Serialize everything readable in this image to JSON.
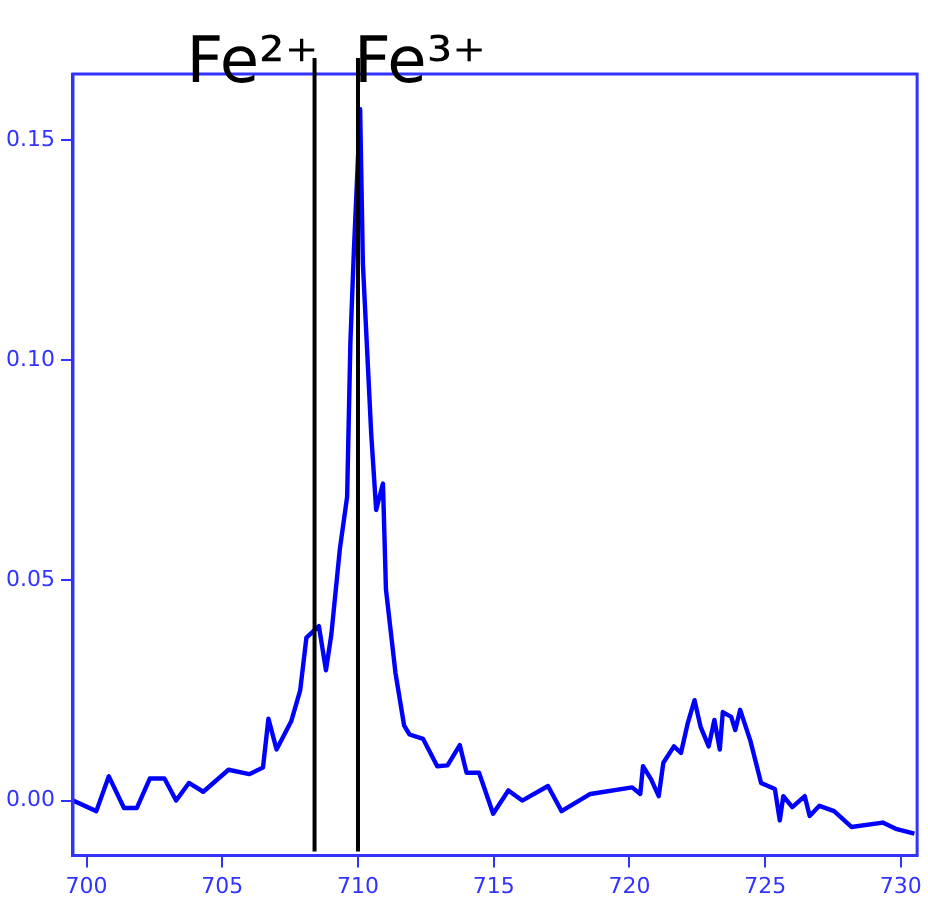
{
  "chart_data": {
    "type": "line",
    "xlim": [
      699.5,
      730.6
    ],
    "ylim": [
      -0.0125,
      0.165
    ],
    "xticks": [
      700,
      705,
      710,
      715,
      720,
      725,
      730
    ],
    "yticks": [
      {
        "value": 0,
        "label": "0.00"
      },
      {
        "value": 0.05,
        "label": "0.05"
      },
      {
        "value": 0.1,
        "label": "0.10"
      },
      {
        "value": 0.15,
        "label": "0.15"
      }
    ],
    "grid": false,
    "legend": false,
    "marker": "none",
    "line_style": "solid",
    "series": [
      {
        "color": "#0000ff",
        "x": [
          699.5,
          700.36,
          700.82,
          701.38,
          701.85,
          702.33,
          702.87,
          703.3,
          703.77,
          704.3,
          705.23,
          706.0,
          706.5,
          706.7,
          707.0,
          707.54,
          707.87,
          708.1,
          708.56,
          708.82,
          709.02,
          709.33,
          709.6,
          709.72,
          709.85,
          710.0,
          710.08,
          710.18,
          710.49,
          710.67,
          710.92,
          711.03,
          711.38,
          711.7,
          711.9,
          712.4,
          712.92,
          713.3,
          713.75,
          714.0,
          714.46,
          714.98,
          715.54,
          716.05,
          717.0,
          717.5,
          718.56,
          720.1,
          720.4,
          720.5,
          720.8,
          721.08,
          721.25,
          721.64,
          721.9,
          722.15,
          722.4,
          722.62,
          722.92,
          723.13,
          723.33,
          723.44,
          723.75,
          723.9,
          724.08,
          724.46,
          724.85,
          725.36,
          725.54,
          725.67,
          726.0,
          726.46,
          726.64,
          727.0,
          727.54,
          728.18,
          729.33,
          729.85,
          730.5
        ],
        "values": [
          0.0,
          -0.0024,
          0.0055,
          -0.0017,
          -0.0017,
          0.005,
          0.005,
          0.0,
          0.004,
          0.002,
          0.007,
          0.006,
          0.0075,
          0.0186,
          0.0116,
          0.018,
          0.025,
          0.037,
          0.0396,
          0.0296,
          0.0378,
          0.057,
          0.069,
          0.104,
          0.125,
          0.146,
          0.157,
          0.122,
          0.083,
          0.066,
          0.072,
          0.048,
          0.029,
          0.017,
          0.015,
          0.014,
          0.0078,
          0.008,
          0.0126,
          0.0063,
          0.0063,
          -0.003,
          0.0023,
          0.0,
          0.0033,
          -0.0024,
          0.0015,
          0.003,
          0.0015,
          0.0078,
          0.0048,
          0.001,
          0.0086,
          0.0123,
          0.0108,
          0.0176,
          0.0228,
          0.0168,
          0.0123,
          0.0183,
          0.0116,
          0.0201,
          0.019,
          0.016,
          0.0206,
          0.0135,
          0.004,
          0.0026,
          -0.0045,
          0.001,
          -0.0015,
          0.001,
          -0.0035,
          -0.0012,
          -0.0024,
          -0.006,
          -0.005,
          -0.0065,
          -0.0075
        ]
      }
    ],
    "ref_lines": [
      {
        "axis": "x",
        "value": 708.4,
        "label": "Fe²⁺",
        "color": "#000000"
      },
      {
        "axis": "x",
        "value": 710.0,
        "label": "Fe³⁺",
        "color": "#000000"
      }
    ]
  }
}
